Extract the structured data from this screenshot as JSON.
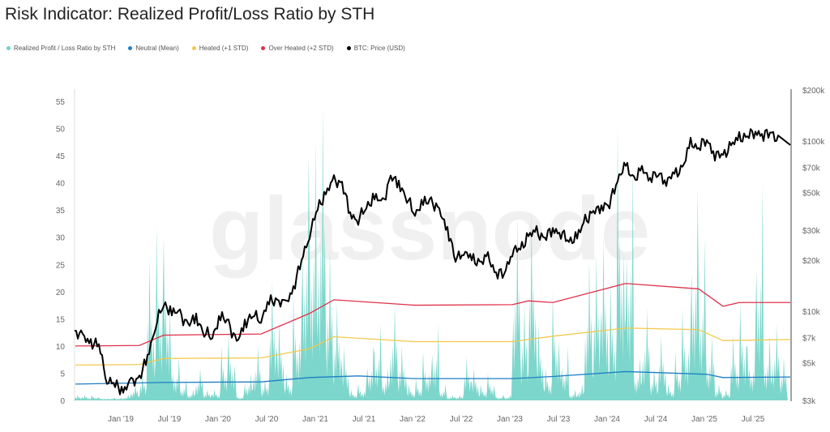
{
  "title": "Risk Indicator: Realized Profit/Loss Ratio by STH",
  "watermark": "glassnode",
  "chart_data": {
    "type": "line",
    "title": "Risk Indicator: Realized Profit/Loss Ratio by STH",
    "legend_position": "top-left",
    "legend": [
      {
        "name": "Realized Profit / Loss Ratio by STH",
        "color": "#6fd3c6"
      },
      {
        "name": "Neutral (Mean)",
        "color": "#1f7ec4"
      },
      {
        "name": "Heated (+1 STD)",
        "color": "#f2c94c"
      },
      {
        "name": "Over Heated (+2 STD)",
        "color": "#e0304a"
      },
      {
        "name": "BTC: Price (USD)",
        "color": "#000000"
      }
    ],
    "x_ticks": [
      "Jan '19",
      "Jul '19",
      "Jan '20",
      "Jul '20",
      "Jan '21",
      "Jul '21",
      "Jan '22",
      "Jul '22",
      "Jan '23",
      "Jul '23",
      "Jan '24",
      "Jul '24",
      "Jan '25",
      "Jul '25"
    ],
    "y_left": {
      "ylim": [
        0,
        57
      ],
      "ticks": [
        "0",
        "5",
        "10",
        "15",
        "20",
        "25",
        "30",
        "35",
        "40",
        "45",
        "50",
        "55"
      ]
    },
    "y_right": {
      "scale": "log",
      "ylim": [
        3000,
        200000
      ],
      "ticks": [
        {
          "label": "$3k",
          "value": 3000
        },
        {
          "label": "$5k",
          "value": 5000
        },
        {
          "label": "$7k",
          "value": 7000
        },
        {
          "label": "$10k",
          "value": 10000
        },
        {
          "label": "$20k",
          "value": 20000
        },
        {
          "label": "$30k",
          "value": 30000
        },
        {
          "label": "$50k",
          "value": 50000
        },
        {
          "label": "$70k",
          "value": 70000
        },
        {
          "label": "$100k",
          "value": 100000
        },
        {
          "label": "$200k",
          "value": 200000
        }
      ]
    },
    "start_month": "2018-07",
    "ratio_monthly_peak": [
      1,
      1,
      1,
      0.5,
      0.5,
      0.5,
      1,
      3,
      5,
      26,
      32,
      30,
      8,
      4,
      2,
      6,
      2,
      2,
      10,
      12,
      1,
      5,
      10,
      4,
      22,
      15,
      5,
      20,
      45,
      48,
      54,
      28,
      18,
      10,
      2,
      3,
      10,
      14,
      6,
      18,
      10,
      3,
      4,
      9,
      14,
      3,
      1,
      1,
      8,
      6,
      3,
      5,
      1,
      1,
      34,
      18,
      35,
      14,
      6,
      20,
      10,
      2,
      3,
      26,
      27,
      30,
      22,
      50,
      44,
      8,
      17,
      6,
      12,
      3,
      9,
      17,
      39,
      30,
      12,
      3,
      2,
      12,
      18,
      10,
      40,
      12,
      14,
      8
    ],
    "price_monthly": [
      7700,
      7000,
      6600,
      6300,
      4000,
      3700,
      3450,
      3800,
      4100,
      5300,
      8500,
      11000,
      10000,
      9600,
      8300,
      9200,
      7500,
      7200,
      9300,
      8600,
      6400,
      8600,
      9500,
      9100,
      11300,
      11700,
      10800,
      13800,
      19700,
      29000,
      40000,
      50000,
      58000,
      57000,
      37000,
      35000,
      41000,
      47000,
      43000,
      61000,
      57000,
      46000,
      38000,
      43000,
      45000,
      38000,
      31000,
      20000,
      23000,
      20000,
      19500,
      20500,
      17000,
      16500,
      23000,
      23000,
      28000,
      29000,
      27000,
      30500,
      29000,
      26000,
      27000,
      34500,
      37700,
      42000,
      42500,
      61000,
      71000,
      60000,
      67000,
      62000,
      64000,
      59000,
      63000,
      70000,
      96000,
      93000,
      102000,
      84000,
      82000,
      94000,
      104000,
      107000,
      115000,
      108000,
      114000,
      95000
    ],
    "neutral_mean": [
      [
        "2018-07",
        3.0
      ],
      [
        "2019-06",
        3.3
      ],
      [
        "2020-06",
        3.4
      ],
      [
        "2020-12",
        4.2
      ],
      [
        "2021-06",
        4.5
      ],
      [
        "2022-01",
        4.0
      ],
      [
        "2023-01",
        4.0
      ],
      [
        "2023-06",
        4.4
      ],
      [
        "2024-03",
        5.3
      ],
      [
        "2024-09",
        5.0
      ],
      [
        "2025-01",
        4.8
      ],
      [
        "2025-03",
        4.2
      ],
      [
        "2025-10",
        4.3
      ]
    ],
    "heated_1std": [
      [
        "2018-07",
        6.5
      ],
      [
        "2019-03",
        6.6
      ],
      [
        "2019-06",
        7.7
      ],
      [
        "2020-06",
        7.8
      ],
      [
        "2020-12",
        9.5
      ],
      [
        "2021-03",
        11.7
      ],
      [
        "2022-01",
        10.8
      ],
      [
        "2023-01",
        10.8
      ],
      [
        "2023-06",
        11.8
      ],
      [
        "2024-03",
        13.3
      ],
      [
        "2024-12",
        13.0
      ],
      [
        "2025-03",
        11.0
      ],
      [
        "2025-10",
        11.2
      ]
    ],
    "overheated_2std": [
      [
        "2018-07",
        10.0
      ],
      [
        "2019-03",
        10.1
      ],
      [
        "2019-06",
        12.0
      ],
      [
        "2020-06",
        12.2
      ],
      [
        "2020-12",
        16.0
      ],
      [
        "2021-03",
        18.5
      ],
      [
        "2022-01",
        17.5
      ],
      [
        "2023-01",
        17.6
      ],
      [
        "2023-03",
        18.3
      ],
      [
        "2023-06",
        18.0
      ],
      [
        "2024-03",
        21.5
      ],
      [
        "2024-12",
        20.5
      ],
      [
        "2025-03",
        17.3
      ],
      [
        "2025-05",
        18.0
      ],
      [
        "2025-10",
        18.0
      ]
    ]
  }
}
